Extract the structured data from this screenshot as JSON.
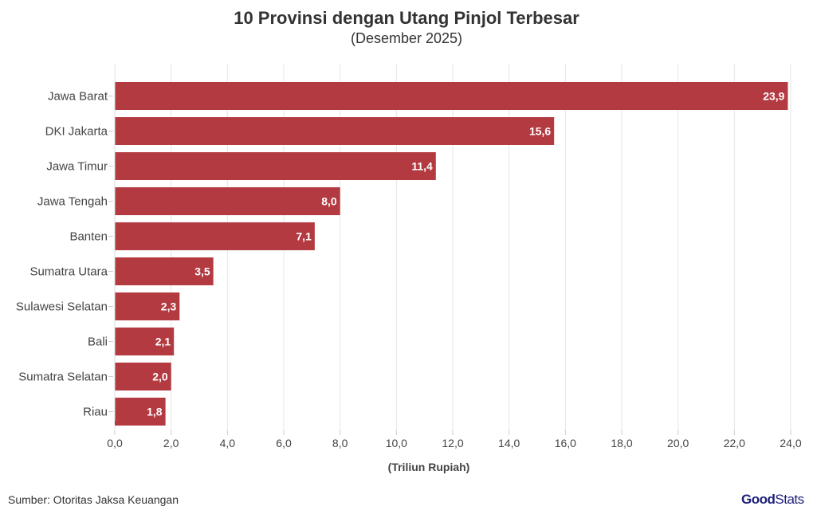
{
  "chart_data": {
    "type": "bar",
    "orientation": "horizontal",
    "title": "10 Provinsi dengan Utang Pinjol Terbesar",
    "subtitle": "(Desember 2025)",
    "xlabel": "(Triliun Rupiah)",
    "ylabel": "",
    "categories": [
      "Jawa Barat",
      "DKI Jakarta",
      "Jawa Timur",
      "Jawa Tengah",
      "Banten",
      "Sumatra Utara",
      "Sulawesi Selatan",
      "Bali",
      "Sumatra Selatan",
      "Riau"
    ],
    "values": [
      23.9,
      15.6,
      11.4,
      8.0,
      7.1,
      3.5,
      2.3,
      2.1,
      2.0,
      1.8
    ],
    "data_labels": [
      "23,9",
      "15,6",
      "11,4",
      "8,0",
      "7,1",
      "3,5",
      "2,3",
      "2,1",
      "2,0",
      "1,8"
    ],
    "xlim": [
      0,
      24
    ],
    "xticks": [
      "0,0",
      "2,0",
      "4,0",
      "6,0",
      "8,0",
      "10,0",
      "12,0",
      "14,0",
      "16,0",
      "18,0",
      "20,0",
      "22,0",
      "24,0"
    ],
    "grid": true,
    "bar_color": "#b33a40"
  },
  "footer": {
    "source": "Sumber: Otoritas Jaksa Keuangan",
    "logo_text": "GoodStats"
  }
}
